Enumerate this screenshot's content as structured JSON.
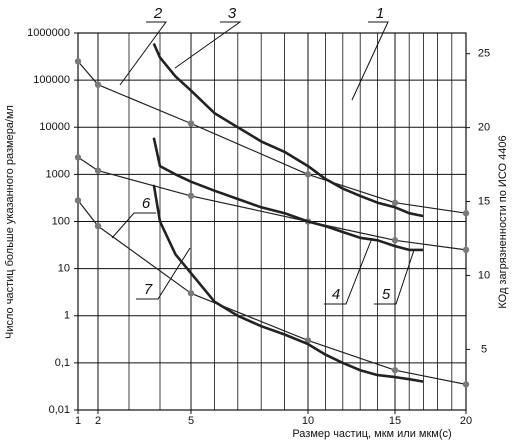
{
  "chart_data": {
    "type": "line",
    "xlabel": "Размер частиц, мкм или мкм(с)",
    "ylabel": "Число частиц больше указанного размера/мл",
    "y2label": "КОд загрязненности по ИСО 4406",
    "xlim": [
      1,
      20
    ],
    "xticks": [
      1,
      2,
      5,
      10,
      15,
      20
    ],
    "xminor": [
      3,
      4,
      6,
      7,
      8,
      9,
      11,
      12,
      13,
      14,
      16,
      17,
      18,
      19
    ],
    "ylim": [
      0.01,
      1000000
    ],
    "yscale": "log",
    "yticks": [
      {
        "value": 0.01,
        "label": "0,01"
      },
      {
        "value": 0.1,
        "label": "0,1"
      },
      1,
      10,
      100,
      1000,
      10000,
      100000,
      1000000
    ],
    "y2lim": [
      0.9,
      26.4
    ],
    "y2ticks": [
      5,
      10,
      15,
      20,
      25
    ],
    "grid": true,
    "series": [
      {
        "x": [
          1,
          2,
          5,
          10,
          15,
          20
        ],
        "values": [
          250000,
          80000,
          12000,
          1000,
          250,
          150
        ],
        "color": "#222222",
        "width": 1.2,
        "marker": true
      },
      {
        "x": [
          1,
          2,
          5,
          10,
          15,
          20
        ],
        "values": [
          2300,
          1200,
          350,
          100,
          40,
          25
        ],
        "color": "#222222",
        "width": 1.2,
        "marker": true
      },
      {
        "x": [
          1,
          2,
          5,
          10,
          15,
          20
        ],
        "values": [
          280,
          80,
          3,
          0.3,
          0.07,
          0.035
        ],
        "color": "#222222",
        "width": 1.2,
        "marker": true
      },
      {
        "x": [
          3.8,
          4,
          4.5,
          5,
          6,
          7,
          8,
          9,
          10,
          11,
          12,
          13,
          14,
          15,
          16,
          17
        ],
        "values": [
          600000,
          300000,
          120000,
          60000,
          20000,
          10000,
          5000,
          3000,
          1500,
          800,
          500,
          350,
          250,
          200,
          150,
          130
        ],
        "color": "#222222",
        "width": 2.6,
        "marker": false
      },
      {
        "x": [
          3.8,
          4,
          4.5,
          5,
          6,
          7,
          8,
          9,
          10,
          11,
          12,
          13,
          14,
          15,
          16,
          17
        ],
        "values": [
          6000,
          1500,
          1000,
          700,
          450,
          300,
          200,
          150,
          100,
          80,
          60,
          45,
          40,
          30,
          25,
          25
        ],
        "color": "#222222",
        "width": 2.6,
        "marker": false
      },
      {
        "x": [
          3.8,
          4,
          4.5,
          5,
          6,
          7,
          8,
          9,
          10,
          11,
          12,
          13,
          14,
          15,
          16,
          17
        ],
        "values": [
          600,
          100,
          20,
          8,
          2,
          1,
          0.6,
          0.4,
          0.25,
          0.15,
          0.1,
          0.07,
          0.055,
          0.05,
          0.045,
          0.04
        ],
        "color": "#222222",
        "width": 2.6,
        "marker": false
      }
    ],
    "marker_color": "#7a7a7a",
    "annotations": [
      "1",
      "2",
      "3",
      "4",
      "5",
      "6",
      "7"
    ]
  }
}
